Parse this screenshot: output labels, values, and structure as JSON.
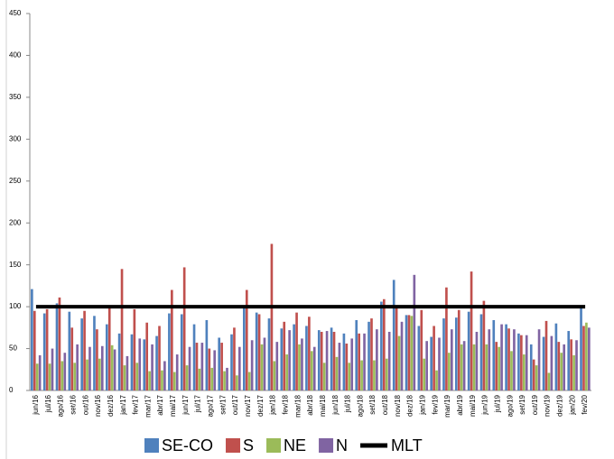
{
  "chart_data": {
    "type": "bar",
    "categories": [
      "jun/16",
      "jul/16",
      "ago/16",
      "set/16",
      "out/16",
      "nov/16",
      "dez/16",
      "jan/17",
      "fev/17",
      "mar/17",
      "abr/17",
      "mai/17",
      "jun/17",
      "jul/17",
      "ago/17",
      "set/17",
      "out/17",
      "nov/17",
      "dez/17",
      "jan/18",
      "fev/18",
      "mar/18",
      "abr/18",
      "mai/18",
      "jun/18",
      "jul/18",
      "ago/18",
      "set/18",
      "out/18",
      "nov/18",
      "dez/18",
      "jan/19",
      "fev/19",
      "mar/19",
      "abr/19",
      "mai/19",
      "jun/19",
      "jul/19",
      "ago/19",
      "set/19",
      "out/19",
      "nov/19",
      "dez/19",
      "jan/20",
      "fev/20"
    ],
    "series": [
      {
        "name": "SE-CO",
        "color": "#4f81bd",
        "values": [
          121,
          92,
          104,
          94,
          86,
          89,
          79,
          68,
          67,
          61,
          65,
          92,
          91,
          79,
          84,
          63,
          67,
          98,
          93,
          86,
          74,
          79,
          77,
          72,
          75,
          68,
          84,
          82,
          106,
          132,
          90,
          77,
          64,
          86,
          87,
          94,
          91,
          84,
          79,
          68,
          55,
          64,
          80,
          71,
          98
        ]
      },
      {
        "name": "S",
        "color": "#c0504d",
        "values": [
          95,
          97,
          111,
          75,
          95,
          73,
          100,
          145,
          97,
          81,
          77,
          120,
          147,
          57,
          50,
          57,
          75,
          120,
          91,
          175,
          82,
          93,
          88,
          70,
          70,
          56,
          68,
          86,
          109,
          100,
          90,
          96,
          77,
          123,
          96,
          142,
          107,
          58,
          74,
          66,
          37,
          83,
          58,
          61,
          77
        ]
      },
      {
        "name": "NE",
        "color": "#9bbb59",
        "values": [
          32,
          32,
          35,
          33,
          37,
          38,
          54,
          30,
          33,
          23,
          24,
          22,
          30,
          26,
          27,
          23,
          18,
          22,
          55,
          35,
          43,
          55,
          47,
          33,
          40,
          33,
          36,
          36,
          38,
          65,
          89,
          38,
          24,
          45,
          55,
          55,
          55,
          52,
          47,
          43,
          30,
          21,
          45,
          42,
          81
        ]
      },
      {
        "name": "N",
        "color": "#8064a2",
        "values": [
          42,
          50,
          45,
          55,
          52,
          53,
          49,
          41,
          62,
          55,
          35,
          43,
          52,
          57,
          48,
          27,
          52,
          60,
          63,
          58,
          72,
          62,
          52,
          71,
          57,
          62,
          68,
          73,
          70,
          82,
          138,
          59,
          63,
          73,
          59,
          70,
          73,
          79,
          73,
          66,
          73,
          65,
          55,
          60,
          75
        ]
      },
      {
        "name": "MLT",
        "color": "#000000",
        "type": "line",
        "values": [
          100,
          100,
          100,
          100,
          100,
          100,
          100,
          100,
          100,
          100,
          100,
          100,
          100,
          100,
          100,
          100,
          100,
          100,
          100,
          100,
          100,
          100,
          100,
          100,
          100,
          100,
          100,
          100,
          100,
          100,
          100,
          100,
          100,
          100,
          100,
          100,
          100,
          100,
          100,
          100,
          100,
          100,
          100,
          100,
          100
        ]
      }
    ],
    "ylim": [
      0,
      450
    ],
    "yticks": [
      0,
      50,
      100,
      150,
      200,
      250,
      300,
      350,
      400,
      450
    ],
    "grid": false
  }
}
